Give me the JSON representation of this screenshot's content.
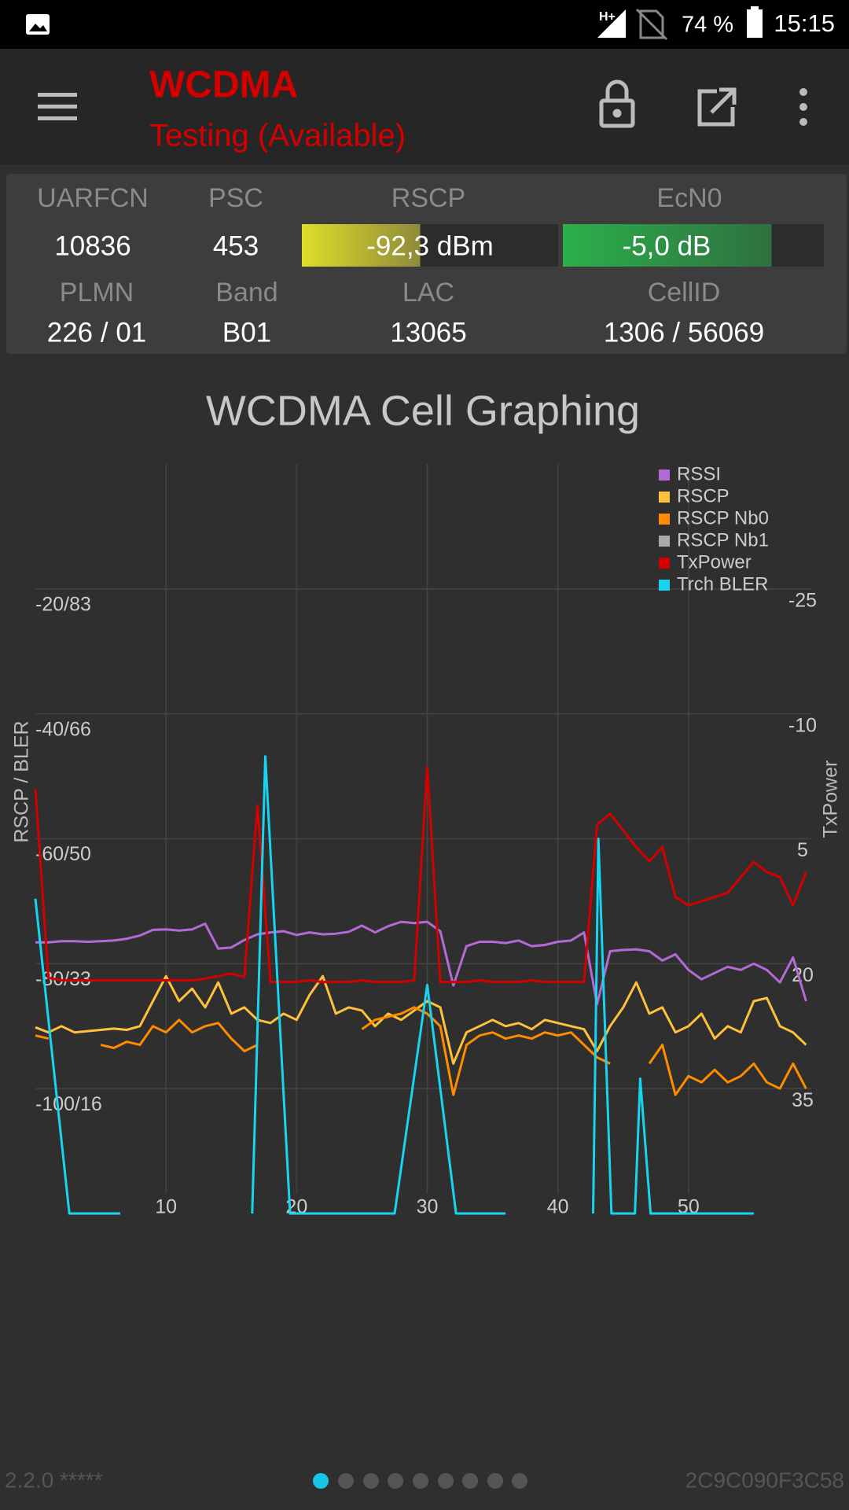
{
  "status_bar": {
    "battery": "74 %",
    "time": "15:15"
  },
  "app_bar": {
    "title": "WCDMA",
    "subtitle": "Testing (Available)"
  },
  "info": {
    "uarfcn": {
      "label": "UARFCN",
      "value": "10836"
    },
    "psc": {
      "label": "PSC",
      "value": "453"
    },
    "rscp": {
      "label": "RSCP",
      "value": -92.3,
      "value_label": "-92,3 dBm",
      "range": [
        -120,
        -60
      ]
    },
    "ecn0": {
      "label": "EcN0",
      "value": -5.0,
      "value_label": "-5,0 dB",
      "range": [
        -25,
        0
      ]
    },
    "plmn": {
      "label": "PLMN",
      "value": "226 / 01"
    },
    "band": {
      "label": "Band",
      "value": "B01"
    },
    "lac": {
      "label": "LAC",
      "value": "13065"
    },
    "cellid": {
      "label": "CellID",
      "value": "1306 / 56069"
    }
  },
  "chart_data": {
    "type": "line",
    "title": "WCDMA Cell Graphing",
    "ylabel": "RSCP / BLER",
    "y2label": "TxPower",
    "xlim": [
      0,
      60
    ],
    "xticks": [
      10,
      20,
      30,
      40,
      50
    ],
    "ylim": [
      -120,
      0
    ],
    "yticks": [
      {
        "value": -20,
        "label": "-20/83"
      },
      {
        "value": -40,
        "label": "-40/66"
      },
      {
        "value": -60,
        "label": "-60/50"
      },
      {
        "value": -80,
        "label": "-80/33"
      },
      {
        "value": -100,
        "label": "-100/16"
      }
    ],
    "y2lim": [
      50,
      -40
    ],
    "y2ticks": [
      -25,
      -10,
      5,
      20,
      35
    ],
    "y3lim": [
      0,
      100
    ],
    "grid": true,
    "legend": "upper right",
    "x": [
      0,
      1,
      2,
      3,
      4,
      5,
      6,
      7,
      8,
      9,
      10,
      11,
      12,
      13,
      14,
      15,
      16,
      17,
      18,
      19,
      20,
      21,
      22,
      23,
      24,
      25,
      26,
      27,
      28,
      29,
      30,
      31,
      32,
      33,
      34,
      35,
      36,
      37,
      38,
      39,
      40,
      41,
      42,
      43,
      44,
      45,
      46,
      47,
      48,
      49,
      50,
      51,
      52,
      53,
      54,
      55,
      56,
      57,
      58,
      59
    ],
    "series": [
      {
        "name": "RSSI",
        "color": "#b36ad6",
        "values": [
          -76.6,
          -76.6,
          -76.4,
          -76.4,
          -76.5,
          -76.4,
          -76.3,
          -76.0,
          -75.5,
          -74.6,
          -74.5,
          -74.7,
          -74.5,
          -73.6,
          -77.6,
          -77.4,
          -76.2,
          -75.3,
          -75.0,
          -74.8,
          -75.4,
          -75.0,
          -75.3,
          -75.2,
          -74.9,
          -73.9,
          -75.0,
          -74.0,
          -73.3,
          -73.5,
          -73.3,
          -74.8,
          -83.5,
          -77.2,
          -76.5,
          -76.5,
          -76.7,
          -76.3,
          -77.2,
          -77.0,
          -76.5,
          -76.3,
          -75.0,
          -86.5,
          -78.0,
          -77.8,
          -77.7,
          -78.0,
          -79.5,
          -78.5,
          -81.0,
          -82.5,
          -81.5,
          -80.5,
          -81.0,
          -80.0,
          -81.0,
          -83.0,
          -79.0,
          -86.0
        ]
      },
      {
        "name": "RSCP",
        "color": "#ffc13b",
        "values": [
          -90.2,
          -91,
          -90,
          -91,
          -90.8,
          -90.6,
          -90.4,
          -90.6,
          -90,
          -86,
          -82,
          -86,
          -84,
          -87,
          -83,
          -88,
          -87,
          -89,
          -89.5,
          -88,
          -89,
          -85,
          -82,
          -88,
          -87,
          -87.5,
          -90,
          -88,
          -89,
          -87.5,
          -86,
          -87,
          -96,
          -91,
          -90,
          -89,
          -90,
          -89.5,
          -90.5,
          -89,
          -89.5,
          -90,
          -90.5,
          -94,
          -90,
          -87,
          -83,
          -88,
          -87,
          -91,
          -90,
          -88,
          -92,
          -90,
          -91,
          -86,
          -85.5,
          -90,
          -91,
          -93
        ]
      },
      {
        "name": "RSCP Nb0",
        "color": "#ff8c00",
        "values": [
          -91.5,
          -92,
          null,
          null,
          null,
          -93,
          -93.5,
          -92.5,
          -93,
          -90,
          -91,
          -89,
          -91,
          -90,
          -89.5,
          -92,
          -94,
          -93,
          null,
          null,
          null,
          null,
          null,
          null,
          null,
          -90.5,
          -89,
          -88.5,
          -88,
          -87,
          -88,
          -90,
          -101,
          -93,
          -91.5,
          -91,
          -92,
          -91.5,
          -92,
          -91,
          -91.5,
          -91,
          -93,
          -95,
          -96,
          null,
          null,
          -96,
          -93,
          -101,
          -98,
          -99,
          -97,
          -99,
          -98,
          -96,
          -99,
          -100,
          -96,
          -100
        ]
      },
      {
        "name": "RSCP Nb1",
        "color": "#aaaaaa",
        "values": [
          null,
          null,
          null,
          null,
          null,
          null,
          null,
          null,
          null,
          null,
          null,
          null,
          null,
          null,
          null,
          null,
          null,
          null,
          null,
          null,
          null,
          null,
          null,
          null,
          null,
          null,
          null,
          null,
          null,
          null,
          null,
          null,
          null,
          null,
          null,
          null,
          null,
          null,
          null,
          null,
          null,
          null,
          null,
          null,
          null,
          null,
          null,
          null,
          null,
          null,
          null,
          null,
          null,
          null,
          null,
          null,
          null,
          null,
          null,
          null
        ]
      },
      {
        "name": "TxPower",
        "color": "#d40000",
        "axis": "y2",
        "values": [
          -1,
          21.7,
          22,
          22,
          22,
          22,
          22,
          22,
          22,
          22,
          22,
          22,
          22,
          21.8,
          21.5,
          21.2,
          21.6,
          1,
          22.2,
          22.2,
          22.2,
          22,
          22.2,
          22.2,
          22.2,
          22,
          22.2,
          22.2,
          22.2,
          22,
          -3.6,
          22.2,
          22.2,
          22.2,
          22,
          22.2,
          22.2,
          22.2,
          22,
          22.2,
          22.2,
          22.2,
          22.2,
          3.3,
          2,
          4,
          6,
          7.7,
          6,
          12,
          13,
          12.5,
          12,
          11.5,
          9.6,
          7.8,
          9,
          9.6,
          13,
          9
        ]
      },
      {
        "name": "Trch BLER",
        "color": "#17d4f0",
        "axis": "y3",
        "x": [
          0,
          2.6,
          6.5,
          11,
          16.6,
          17.6,
          19.5,
          27.5,
          30,
          32.2,
          36,
          39,
          42.7,
          43.1,
          44.1,
          45.9,
          46.3,
          47.1,
          55
        ],
        "values": [
          42,
          0,
          0,
          null,
          0,
          61,
          0,
          0,
          30.5,
          0,
          0,
          null,
          0,
          50,
          0,
          0,
          18,
          0,
          0
        ]
      }
    ]
  },
  "footer": {
    "version": "2.2.0 *****",
    "device_id": "2C9C090F3C58"
  }
}
